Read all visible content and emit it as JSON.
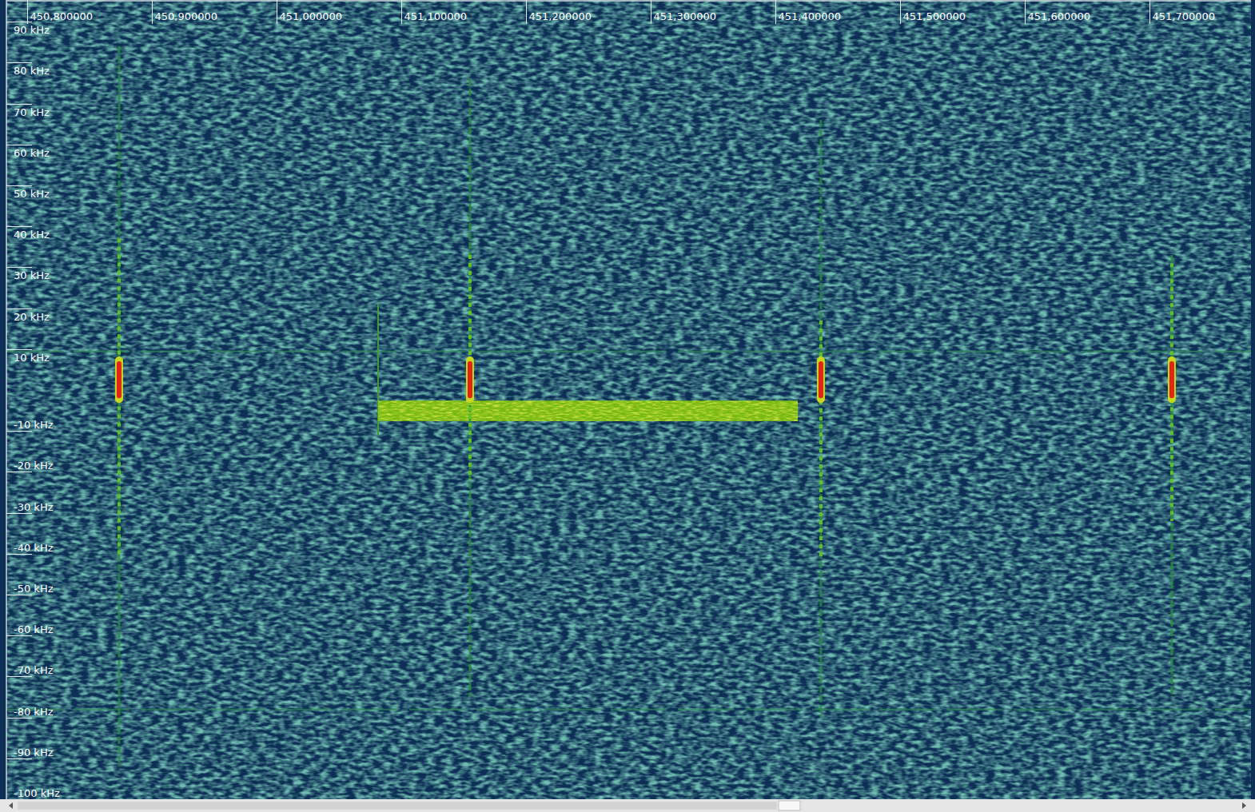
{
  "chart_data": {
    "type": "spectrogram",
    "xlim": [
      450783333,
      451781410
    ],
    "xticks": [
      {
        "value": 450800000,
        "label": "450,800000"
      },
      {
        "value": 450900000,
        "label": "450,900000"
      },
      {
        "value": 451000000,
        "label": "451,000000"
      },
      {
        "value": 451100000,
        "label": "451,100000"
      },
      {
        "value": 451200000,
        "label": "451,200000"
      },
      {
        "value": 451300000,
        "label": "451,300000"
      },
      {
        "value": 451400000,
        "label": "451,400000"
      },
      {
        "value": 451500000,
        "label": "451,500000"
      },
      {
        "value": 451600000,
        "label": "451,600000"
      },
      {
        "value": 451700000,
        "label": "451,700000"
      }
    ],
    "ylim": [
      -100,
      95.3
    ],
    "yticks": [
      {
        "value": 90,
        "label": "90 kHz"
      },
      {
        "value": 80,
        "label": "80 kHz"
      },
      {
        "value": 70,
        "label": "70 kHz"
      },
      {
        "value": 60,
        "label": "60 kHz"
      },
      {
        "value": 50,
        "label": "50 kHz"
      },
      {
        "value": 40,
        "label": "40 kHz"
      },
      {
        "value": 30,
        "label": "30 kHz"
      },
      {
        "value": 20,
        "label": "20 kHz"
      },
      {
        "value": 10,
        "label": "10 kHz"
      },
      {
        "value": -10,
        "label": "-10 kHz"
      },
      {
        "value": -20,
        "label": "-20 kHz"
      },
      {
        "value": -30,
        "label": "-30 kHz"
      },
      {
        "value": -40,
        "label": "-40 kHz"
      },
      {
        "value": -50,
        "label": "-50 kHz"
      },
      {
        "value": -60,
        "label": "-60 kHz"
      },
      {
        "value": -70,
        "label": "-70 kHz"
      },
      {
        "value": -80,
        "label": "-80 kHz"
      },
      {
        "value": -90,
        "label": "-90 kHz"
      },
      {
        "value": -100,
        "label": "-100 kHz"
      }
    ],
    "bursts": [
      {
        "x": 450873700,
        "f_low": -92,
        "f_high": 84,
        "bright_low": -41,
        "bright_high": 37,
        "peak_low": -2,
        "peak_high": 7
      },
      {
        "x": 451155100,
        "f_low": -75,
        "f_high": 76,
        "bright_low": -22,
        "bright_high": 33,
        "peak_low": -2,
        "peak_high": 7
      },
      {
        "x": 451436500,
        "f_low": -80,
        "f_high": 66,
        "bright_low": -41,
        "bright_high": 17,
        "peak_low": -2,
        "peak_high": 7
      },
      {
        "x": 451717900,
        "f_low": -75,
        "f_high": 33,
        "bright_low": -32,
        "bright_high": 31,
        "peak_low": -2,
        "peak_high": 7
      }
    ],
    "signal": {
      "x_start": 451081400,
      "x_end": 451418000,
      "f_low": -7.6,
      "f_high": -2.6,
      "onset_f_low": -11,
      "onset_f_high": 21
    },
    "spurs": [
      9.4,
      -78.1
    ]
  }
}
